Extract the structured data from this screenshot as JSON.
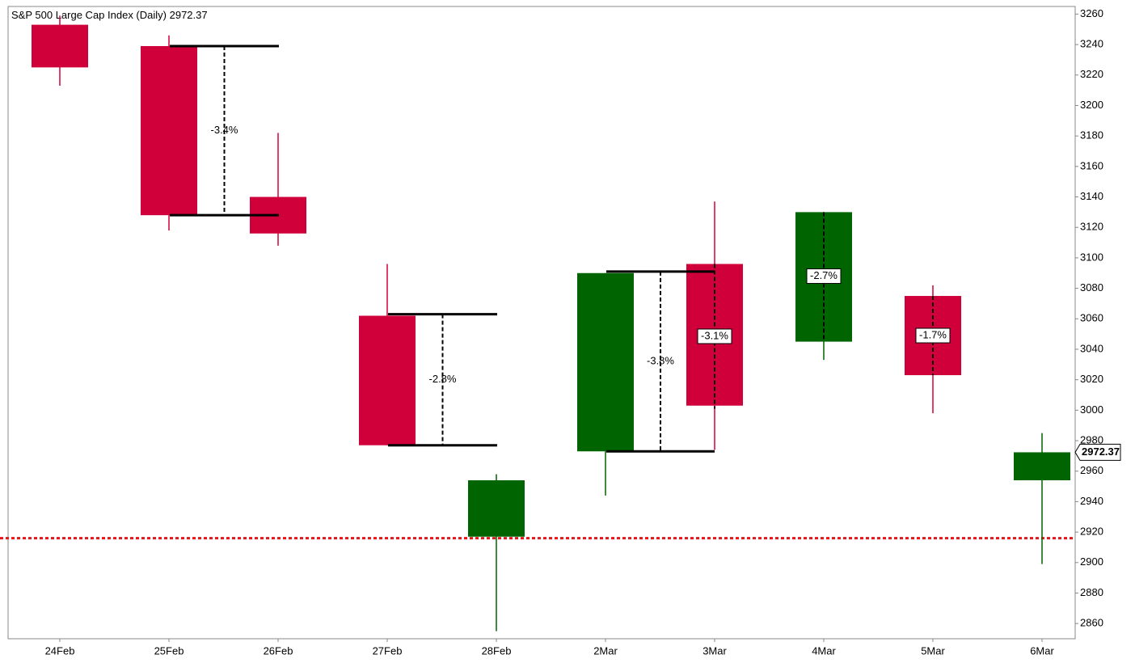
{
  "chart_data": {
    "type": "candlestick",
    "title": "S&P 500 Large Cap Index (Daily)",
    "last": 2972.37,
    "categories": [
      "24Feb",
      "25Feb",
      "26Feb",
      "27Feb",
      "28Feb",
      "2Mar",
      "3Mar",
      "4Mar",
      "5Mar",
      "6Mar"
    ],
    "open": [
      3253,
      3239,
      3140,
      3062,
      2917,
      2973,
      3096,
      3045,
      3075,
      2954
    ],
    "high": [
      3259,
      3246,
      3182,
      3096,
      2958,
      3090,
      3137,
      3130,
      3082,
      2985
    ],
    "low": [
      3213,
      3118,
      3108,
      2977,
      2855,
      2944,
      2974,
      3033,
      2998,
      2899
    ],
    "close": [
      3225,
      3128,
      3116,
      2977,
      2954,
      3090,
      3003,
      3130,
      3023,
      2972.37
    ],
    "up_color": "#006400",
    "down_color": "#d0003a",
    "ylim": [
      2850,
      3265
    ],
    "yticks": [
      2860,
      2880,
      2900,
      2920,
      2940,
      2960,
      2980,
      3000,
      3020,
      3040,
      3060,
      3080,
      3100,
      3120,
      3140,
      3160,
      3180,
      3200,
      3220,
      3240,
      3260
    ],
    "reference_line": {
      "value": 2916,
      "color": "#e8141a"
    },
    "brackets": [
      {
        "label": "-3.4%",
        "high": 3239,
        "low": 3128
      },
      {
        "label": "-2.8%",
        "high": 3063,
        "low": 2977
      },
      {
        "label": "-3.8%",
        "high": 3091,
        "low": 2973
      },
      {
        "label": "-3.1%",
        "high": 3096,
        "low": 3001
      },
      {
        "label": "-2.7%",
        "high": 3130,
        "low": 3046
      },
      {
        "label": "-1.7%",
        "high": 3075,
        "low": 3023
      }
    ]
  }
}
